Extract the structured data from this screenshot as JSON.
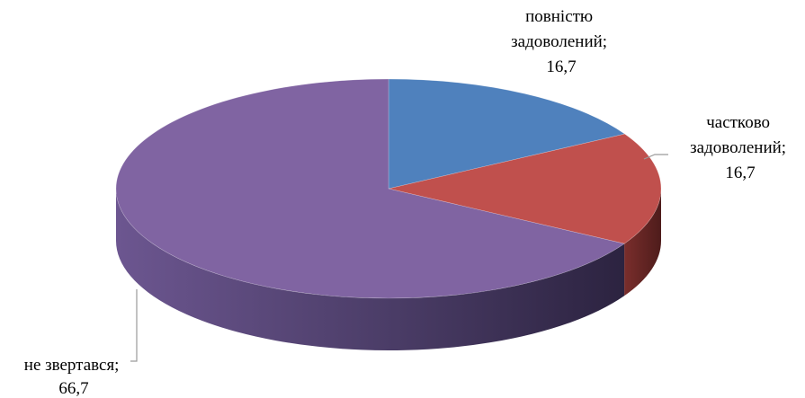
{
  "chart_data": {
    "type": "pie",
    "style": "3d",
    "title": "",
    "slices": [
      {
        "label_lines": [
          "повністю",
          "задоволений;"
        ],
        "value": 16.7,
        "value_text": "16,7",
        "color": "#4F81BD"
      },
      {
        "label_lines": [
          "частково",
          "задоволений;"
        ],
        "value": 16.7,
        "value_text": "16,7",
        "color": "#C0504D"
      },
      {
        "label_lines": [
          "не звертався;"
        ],
        "value": 66.7,
        "value_text": "66,7",
        "color": "#8064A2"
      }
    ]
  }
}
